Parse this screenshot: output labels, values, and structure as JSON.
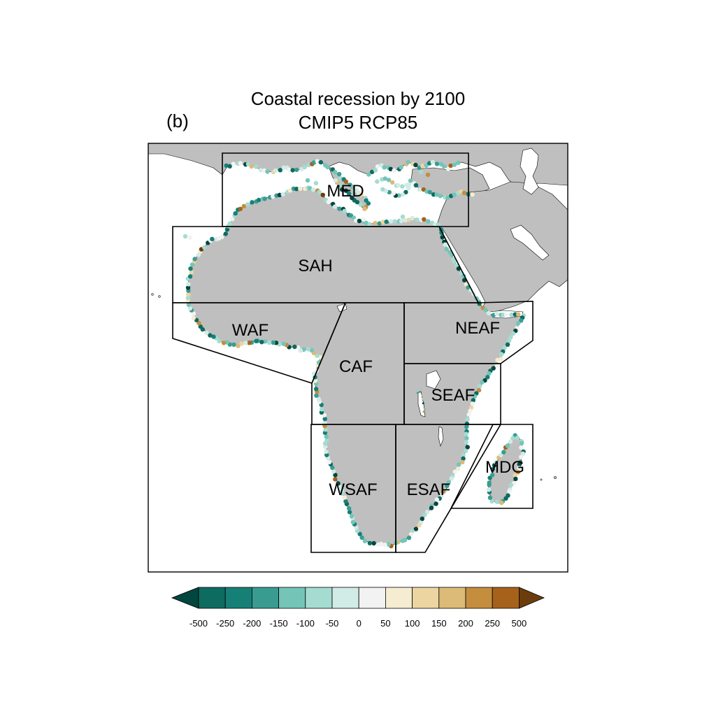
{
  "panel_label": "(b)",
  "title_line1": "Coastal recession by 2100",
  "title_line2": "CMIP5 RCP85",
  "regions": [
    {
      "id": "MED",
      "label": "MED"
    },
    {
      "id": "SAH",
      "label": "SAH"
    },
    {
      "id": "WAF",
      "label": "WAF"
    },
    {
      "id": "CAF",
      "label": "CAF"
    },
    {
      "id": "NEAF",
      "label": "NEAF"
    },
    {
      "id": "SEAF",
      "label": "SEAF"
    },
    {
      "id": "WSAF",
      "label": "WSAF"
    },
    {
      "id": "ESAF",
      "label": "ESAF"
    },
    {
      "id": "MDG",
      "label": "MDG"
    }
  ],
  "colorbar": {
    "labels": [
      "-500",
      "-250",
      "-200",
      "-150",
      "-100",
      "-50",
      "0",
      "50",
      "100",
      "150",
      "200",
      "250",
      "500"
    ],
    "colors": [
      "#01463f",
      "#0e6b60",
      "#168077",
      "#3a9c91",
      "#74c5b8",
      "#a5dcd1",
      "#d1ece6",
      "#f1f2f1",
      "#f5ecd1",
      "#ecd5a1",
      "#dcba77",
      "#c48e3e",
      "#a6621b",
      "#6b3d0c"
    ]
  },
  "colors": {
    "land": "#bfbfbf",
    "ocean": "#ffffff"
  }
}
